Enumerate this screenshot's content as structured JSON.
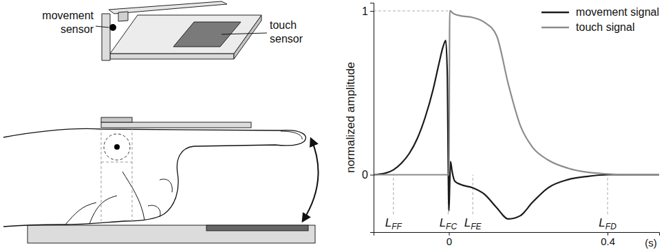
{
  "chart_data": {
    "type": "line",
    "x_label": "(s)",
    "y_label": "normalized amplitude",
    "xlim": [
      -0.19,
      0.53
    ],
    "xticks": [
      0,
      0.4
    ],
    "ylim": [
      -0.35,
      1.05
    ],
    "yticks": [
      0,
      1
    ],
    "legend": "upper right",
    "x": [
      -0.19,
      -0.16,
      -0.14,
      -0.12,
      -0.1,
      -0.08,
      -0.06,
      -0.04,
      -0.025,
      -0.015,
      -0.008,
      -0.004,
      -0.002,
      0,
      0.002,
      0.004,
      0.008,
      0.015,
      0.03,
      0.06,
      0.09,
      0.12,
      0.15,
      0.18,
      0.21,
      0.25,
      0.3,
      0.35,
      0.4,
      0.45,
      0.53
    ],
    "series": [
      {
        "name": "movement signal",
        "color": "#1a1a1a",
        "values": [
          0,
          0.01,
          0.03,
          0.07,
          0.13,
          0.22,
          0.35,
          0.52,
          0.68,
          0.78,
          0.82,
          0.6,
          0.1,
          -0.22,
          -0.05,
          0.08,
          0.02,
          -0.04,
          -0.06,
          -0.08,
          -0.12,
          -0.2,
          -0.27,
          -0.25,
          -0.17,
          -0.08,
          -0.03,
          -0.01,
          0,
          0,
          0
        ]
      },
      {
        "name": "touch signal",
        "color": "#8c8c8c",
        "values": [
          0,
          0,
          0,
          0,
          0,
          0,
          0,
          0,
          0,
          0,
          0,
          0,
          0,
          0,
          1.0,
          1.0,
          0.99,
          0.98,
          0.97,
          0.96,
          0.93,
          0.85,
          0.55,
          0.3,
          0.17,
          0.09,
          0.04,
          0.015,
          0.005,
          0,
          0
        ]
      }
    ],
    "annotations": [
      {
        "label": "L",
        "subscript": "FF",
        "x": -0.14
      },
      {
        "label": "L",
        "subscript": "FC",
        "x": -0.002
      },
      {
        "label": "L",
        "subscript": "FE",
        "x": 0.06
      },
      {
        "label": "L",
        "subscript": "FD",
        "x": 0.4
      }
    ]
  },
  "diagram": {
    "labels": [
      "movement sensor",
      "touch sensor"
    ]
  }
}
